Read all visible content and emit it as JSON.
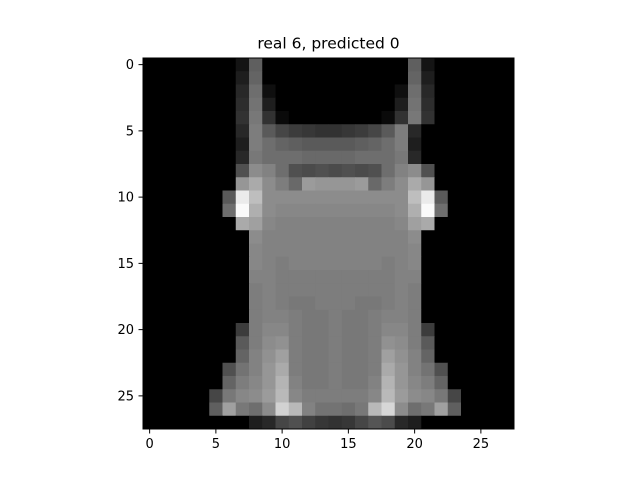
{
  "chart_data": {
    "type": "heatmap",
    "title": "real 6, predicted 0",
    "xlabel": "",
    "ylabel": "",
    "colormap": "gray",
    "grid": false,
    "rows": 28,
    "cols": 28,
    "xlim": [
      -0.5,
      27.5
    ],
    "ylim": [
      27.5,
      -0.5
    ],
    "xticks": [
      0,
      5,
      10,
      15,
      20,
      25
    ],
    "yticks": [
      0,
      5,
      10,
      15,
      20,
      25
    ],
    "x_tick_labels": [
      "0",
      "5",
      "10",
      "15",
      "20",
      "25"
    ],
    "y_tick_labels": [
      "0",
      "5",
      "10",
      "15",
      "20",
      "25"
    ],
    "values": [
      [
        0,
        0,
        0,
        0,
        0,
        0,
        0,
        20,
        95,
        0,
        0,
        0,
        0,
        0,
        0,
        0,
        0,
        0,
        0,
        0,
        95,
        20,
        0,
        0,
        0,
        0,
        0,
        0
      ],
      [
        0,
        0,
        0,
        0,
        0,
        0,
        0,
        30,
        100,
        0,
        0,
        0,
        0,
        0,
        0,
        0,
        0,
        0,
        0,
        0,
        100,
        30,
        0,
        0,
        0,
        0,
        0,
        0
      ],
      [
        0,
        0,
        0,
        0,
        0,
        0,
        0,
        40,
        110,
        15,
        0,
        0,
        0,
        0,
        0,
        0,
        0,
        0,
        0,
        15,
        110,
        40,
        0,
        0,
        0,
        0,
        0,
        0
      ],
      [
        0,
        0,
        0,
        0,
        0,
        0,
        0,
        45,
        115,
        30,
        0,
        0,
        0,
        0,
        0,
        0,
        0,
        0,
        0,
        30,
        115,
        45,
        0,
        0,
        0,
        0,
        0,
        0
      ],
      [
        0,
        0,
        0,
        0,
        0,
        0,
        0,
        50,
        120,
        50,
        10,
        0,
        0,
        0,
        0,
        0,
        0,
        0,
        10,
        50,
        120,
        50,
        0,
        0,
        0,
        0,
        0,
        0
      ],
      [
        0,
        0,
        0,
        0,
        0,
        0,
        0,
        40,
        125,
        90,
        70,
        60,
        55,
        50,
        50,
        55,
        60,
        70,
        90,
        125,
        40,
        0,
        0,
        0,
        0,
        0,
        0,
        0
      ],
      [
        0,
        0,
        0,
        0,
        0,
        0,
        0,
        30,
        125,
        110,
        100,
        95,
        90,
        90,
        90,
        90,
        95,
        100,
        110,
        125,
        30,
        0,
        0,
        0,
        0,
        0,
        0,
        0
      ],
      [
        0,
        0,
        0,
        0,
        0,
        0,
        0,
        40,
        120,
        110,
        110,
        110,
        105,
        105,
        105,
        105,
        110,
        110,
        110,
        120,
        40,
        0,
        0,
        0,
        0,
        0,
        0,
        0
      ],
      [
        0,
        0,
        0,
        0,
        0,
        0,
        0,
        80,
        140,
        130,
        110,
        80,
        75,
        80,
        75,
        80,
        75,
        80,
        110,
        130,
        140,
        80,
        0,
        0,
        0,
        0,
        0,
        0
      ],
      [
        0,
        0,
        0,
        0,
        0,
        0,
        0,
        150,
        170,
        140,
        125,
        105,
        155,
        150,
        150,
        150,
        155,
        105,
        125,
        140,
        170,
        150,
        0,
        0,
        0,
        0,
        0,
        0
      ],
      [
        0,
        0,
        0,
        0,
        0,
        0,
        90,
        235,
        190,
        140,
        140,
        140,
        140,
        140,
        140,
        140,
        140,
        140,
        140,
        140,
        190,
        235,
        90,
        0,
        0,
        0,
        0,
        0
      ],
      [
        0,
        0,
        0,
        0,
        0,
        0,
        110,
        250,
        175,
        140,
        135,
        135,
        135,
        135,
        135,
        135,
        135,
        135,
        135,
        140,
        175,
        250,
        110,
        0,
        0,
        0,
        0,
        0
      ],
      [
        0,
        0,
        0,
        0,
        0,
        0,
        0,
        170,
        160,
        135,
        130,
        130,
        130,
        130,
        130,
        130,
        130,
        130,
        130,
        135,
        160,
        170,
        0,
        0,
        0,
        0,
        0,
        0
      ],
      [
        0,
        0,
        0,
        0,
        0,
        0,
        0,
        0,
        140,
        130,
        130,
        130,
        130,
        130,
        130,
        130,
        130,
        130,
        130,
        130,
        140,
        0,
        0,
        0,
        0,
        0,
        0,
        0
      ],
      [
        0,
        0,
        0,
        0,
        0,
        0,
        0,
        0,
        135,
        130,
        130,
        130,
        130,
        130,
        130,
        130,
        130,
        130,
        130,
        130,
        135,
        0,
        0,
        0,
        0,
        0,
        0,
        0
      ],
      [
        0,
        0,
        0,
        0,
        0,
        0,
        0,
        0,
        135,
        130,
        125,
        130,
        130,
        130,
        130,
        130,
        130,
        130,
        125,
        130,
        135,
        0,
        0,
        0,
        0,
        0,
        0,
        0
      ],
      [
        0,
        0,
        0,
        0,
        0,
        0,
        0,
        0,
        130,
        130,
        125,
        125,
        125,
        125,
        125,
        125,
        125,
        125,
        125,
        130,
        130,
        0,
        0,
        0,
        0,
        0,
        0,
        0
      ],
      [
        0,
        0,
        0,
        0,
        0,
        0,
        0,
        0,
        125,
        130,
        125,
        125,
        125,
        125,
        125,
        125,
        125,
        125,
        125,
        130,
        125,
        0,
        0,
        0,
        0,
        0,
        0,
        0
      ],
      [
        0,
        0,
        0,
        0,
        0,
        0,
        0,
        0,
        125,
        130,
        125,
        120,
        120,
        125,
        125,
        125,
        120,
        120,
        125,
        130,
        125,
        0,
        0,
        0,
        0,
        0,
        0,
        0
      ],
      [
        0,
        0,
        0,
        0,
        0,
        0,
        0,
        0,
        125,
        130,
        130,
        125,
        120,
        120,
        125,
        120,
        120,
        125,
        130,
        130,
        125,
        0,
        0,
        0,
        0,
        0,
        0,
        0
      ],
      [
        0,
        0,
        0,
        0,
        0,
        0,
        0,
        60,
        125,
        135,
        135,
        125,
        120,
        120,
        125,
        120,
        120,
        125,
        135,
        135,
        125,
        60,
        0,
        0,
        0,
        0,
        0,
        0
      ],
      [
        0,
        0,
        0,
        0,
        0,
        0,
        0,
        90,
        125,
        140,
        145,
        125,
        120,
        120,
        125,
        120,
        120,
        125,
        145,
        140,
        125,
        90,
        0,
        0,
        0,
        0,
        0,
        0
      ],
      [
        0,
        0,
        0,
        0,
        0,
        0,
        0,
        100,
        130,
        145,
        160,
        125,
        120,
        120,
        125,
        120,
        120,
        125,
        160,
        145,
        130,
        100,
        0,
        0,
        0,
        0,
        0,
        0
      ],
      [
        0,
        0,
        0,
        0,
        0,
        0,
        80,
        115,
        130,
        150,
        170,
        125,
        120,
        120,
        125,
        120,
        120,
        125,
        170,
        150,
        130,
        115,
        80,
        0,
        0,
        0,
        0,
        0
      ],
      [
        0,
        0,
        0,
        0,
        0,
        0,
        100,
        125,
        135,
        150,
        180,
        130,
        120,
        120,
        125,
        120,
        120,
        130,
        180,
        150,
        135,
        125,
        100,
        0,
        0,
        0,
        0,
        0
      ],
      [
        0,
        0,
        0,
        0,
        0,
        70,
        120,
        135,
        140,
        155,
        185,
        135,
        125,
        125,
        125,
        125,
        125,
        135,
        185,
        155,
        140,
        135,
        120,
        70,
        0,
        0,
        0,
        0
      ],
      [
        0,
        0,
        0,
        0,
        0,
        95,
        160,
        120,
        110,
        140,
        210,
        185,
        130,
        115,
        115,
        110,
        120,
        185,
        215,
        140,
        110,
        120,
        160,
        95,
        0,
        0,
        0,
        0
      ],
      [
        0,
        0,
        0,
        0,
        0,
        0,
        0,
        0,
        30,
        40,
        70,
        80,
        65,
        55,
        50,
        55,
        70,
        85,
        75,
        40,
        30,
        0,
        0,
        0,
        0,
        0,
        0,
        0
      ]
    ]
  }
}
